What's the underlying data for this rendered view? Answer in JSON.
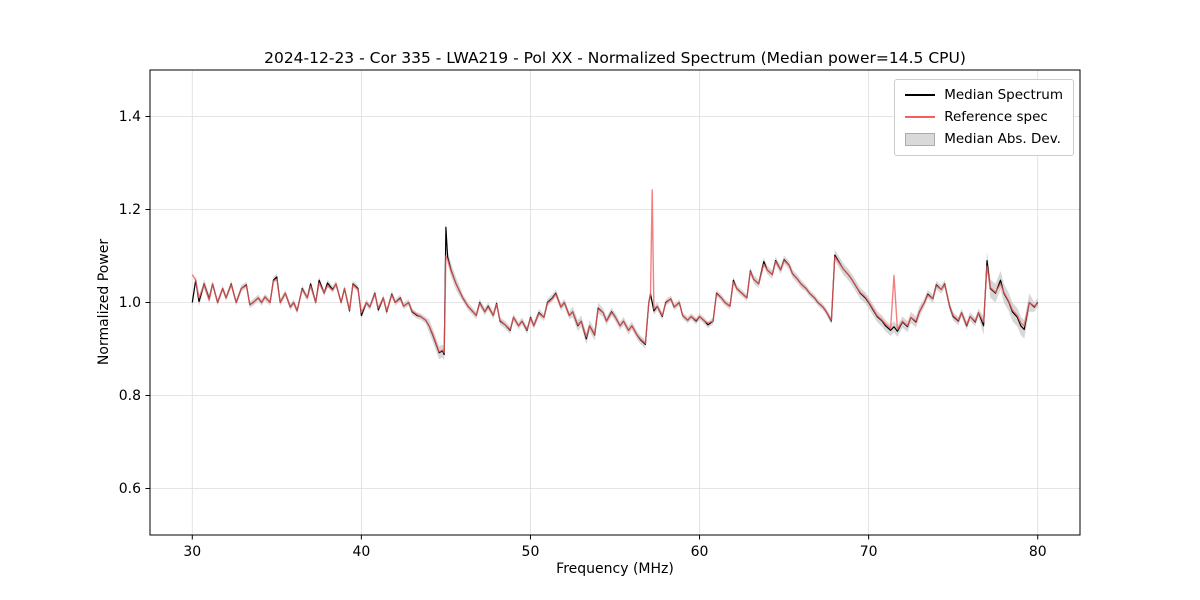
{
  "chart_data": {
    "type": "line",
    "title": "2024-12-23 - Cor 335 - LWA219 - Pol XX - Normalized Spectrum (Median power=14.5 CPU)",
    "xlabel": "Frequency (MHz)",
    "ylabel": "Normalized Power",
    "x_range": [
      27.5,
      82.5
    ],
    "y_range": [
      0.5,
      1.5
    ],
    "x_ticks": [
      30,
      40,
      50,
      60,
      70,
      80
    ],
    "y_ticks": [
      0.6,
      0.8,
      1.0,
      1.2,
      1.4
    ],
    "grid": true,
    "colors": {
      "median": "#000000",
      "reference": "#f25f5f",
      "mad_band": "#bdbdbd",
      "grid": "#dcdcdc",
      "spine": "#000000"
    },
    "legend": {
      "position": "upper right",
      "entries": [
        {
          "label": "Median Spectrum",
          "type": "line",
          "color": "#000000"
        },
        {
          "label": "Reference spec",
          "type": "line",
          "color": "#f25f5f"
        },
        {
          "label": "Median Abs. Dev.",
          "type": "patch",
          "color": "#d9d9d9"
        }
      ]
    },
    "series": {
      "frequency": [
        30.0,
        30.2,
        30.4,
        30.7,
        31.0,
        31.2,
        31.5,
        31.8,
        32.0,
        32.3,
        32.6,
        32.9,
        33.2,
        33.4,
        33.6,
        33.9,
        34.1,
        34.3,
        34.6,
        34.8,
        35.0,
        35.2,
        35.5,
        35.8,
        36.0,
        36.2,
        36.5,
        36.8,
        37.0,
        37.3,
        37.5,
        37.8,
        38.0,
        38.3,
        38.5,
        38.8,
        39.0,
        39.3,
        39.5,
        39.8,
        40.0,
        40.3,
        40.5,
        40.8,
        41.0,
        41.3,
        41.5,
        41.8,
        42.0,
        42.3,
        42.5,
        42.8,
        43.0,
        43.3,
        43.5,
        43.8,
        44.0,
        44.2,
        44.4,
        44.6,
        44.8,
        44.9,
        45.0,
        45.1,
        45.3,
        45.6,
        46.0,
        46.3,
        46.6,
        46.8,
        47.0,
        47.3,
        47.5,
        47.8,
        48.0,
        48.2,
        48.5,
        48.8,
        49.0,
        49.3,
        49.5,
        49.8,
        50.0,
        50.2,
        50.5,
        50.8,
        51.0,
        51.3,
        51.5,
        51.8,
        52.0,
        52.3,
        52.5,
        52.8,
        53.0,
        53.3,
        53.5,
        53.8,
        54.0,
        54.3,
        54.5,
        54.8,
        55.0,
        55.3,
        55.5,
        55.8,
        56.0,
        56.3,
        56.5,
        56.8,
        57.0,
        57.1,
        57.2,
        57.3,
        57.5,
        57.8,
        58.0,
        58.3,
        58.5,
        58.8,
        59.0,
        59.3,
        59.5,
        59.8,
        60.0,
        60.3,
        60.5,
        60.8,
        61.0,
        61.3,
        61.5,
        61.8,
        62.0,
        62.2,
        62.5,
        62.8,
        63.0,
        63.2,
        63.5,
        63.8,
        64.0,
        64.3,
        64.5,
        64.8,
        65.0,
        65.3,
        65.5,
        65.8,
        66.0,
        66.3,
        66.5,
        66.8,
        67.0,
        67.3,
        67.5,
        67.8,
        68.0,
        68.2,
        68.5,
        68.8,
        69.0,
        69.3,
        69.5,
        69.8,
        70.0,
        70.3,
        70.5,
        70.8,
        71.0,
        71.3,
        71.5,
        71.7,
        72.0,
        72.3,
        72.5,
        72.8,
        73.0,
        73.3,
        73.5,
        73.8,
        74.0,
        74.3,
        74.5,
        74.8,
        75.0,
        75.3,
        75.5,
        75.8,
        76.0,
        76.3,
        76.5,
        76.8,
        77.0,
        77.2,
        77.5,
        77.8,
        78.0,
        78.3,
        78.5,
        78.8,
        79.0,
        79.2,
        79.5,
        79.8,
        80.0
      ],
      "median": [
        1.0,
        1.048,
        1.002,
        1.04,
        1.008,
        1.04,
        1.0,
        1.03,
        1.01,
        1.04,
        1.0,
        1.03,
        1.038,
        0.995,
        1.0,
        1.01,
        1.0,
        1.012,
        1.0,
        1.048,
        1.055,
        1.0,
        1.02,
        0.99,
        1.0,
        0.982,
        1.03,
        1.01,
        1.04,
        1.0,
        1.048,
        1.02,
        1.042,
        1.028,
        1.04,
        1.0,
        1.03,
        0.982,
        1.04,
        1.03,
        0.972,
        1.0,
        0.99,
        1.02,
        0.984,
        1.01,
        0.98,
        1.018,
        1.0,
        1.01,
        0.992,
        1.0,
        0.98,
        0.972,
        0.97,
        0.962,
        0.95,
        0.932,
        0.912,
        0.892,
        0.896,
        0.888,
        1.162,
        1.098,
        1.07,
        1.04,
        1.01,
        0.992,
        0.98,
        0.972,
        1.0,
        0.98,
        0.992,
        0.972,
        0.998,
        0.96,
        0.952,
        0.94,
        0.968,
        0.95,
        0.96,
        0.94,
        0.968,
        0.95,
        0.978,
        0.968,
        1.0,
        1.01,
        1.02,
        0.99,
        1.0,
        0.972,
        0.98,
        0.95,
        0.96,
        0.922,
        0.95,
        0.93,
        0.988,
        0.978,
        0.96,
        0.98,
        0.97,
        0.95,
        0.96,
        0.94,
        0.95,
        0.93,
        0.92,
        0.91,
        1.0,
        1.018,
        1.0,
        0.982,
        0.992,
        0.97,
        1.0,
        1.008,
        0.99,
        1.0,
        0.972,
        0.962,
        0.97,
        0.96,
        0.97,
        0.96,
        0.952,
        0.96,
        1.02,
        1.01,
        1.0,
        0.992,
        1.048,
        1.03,
        1.02,
        1.01,
        1.068,
        1.05,
        1.04,
        1.088,
        1.07,
        1.06,
        1.09,
        1.07,
        1.092,
        1.08,
        1.062,
        1.05,
        1.04,
        1.03,
        1.02,
        1.01,
        1.0,
        0.99,
        0.98,
        0.96,
        1.102,
        1.09,
        1.072,
        1.06,
        1.05,
        1.032,
        1.02,
        1.01,
        1.0,
        0.982,
        0.97,
        0.96,
        0.95,
        0.94,
        0.948,
        0.938,
        0.958,
        0.948,
        0.968,
        0.958,
        0.98,
        1.0,
        1.018,
        1.008,
        1.038,
        1.028,
        1.04,
        0.99,
        0.97,
        0.96,
        0.978,
        0.95,
        0.97,
        0.958,
        0.978,
        0.95,
        1.09,
        1.03,
        1.02,
        1.048,
        1.02,
        1.0,
        0.98,
        0.968,
        0.95,
        0.942,
        1.0,
        0.99,
        1.0
      ],
      "reference": [
        1.06,
        1.048,
        1.01,
        1.038,
        1.005,
        1.04,
        1.0,
        1.03,
        1.01,
        1.038,
        1.0,
        1.03,
        1.036,
        0.995,
        1.0,
        1.01,
        1.0,
        1.012,
        1.0,
        1.046,
        1.05,
        1.0,
        1.02,
        0.99,
        1.0,
        0.982,
        1.028,
        1.01,
        1.035,
        1.0,
        1.042,
        1.02,
        1.036,
        1.026,
        1.04,
        1.0,
        1.03,
        0.984,
        1.038,
        1.028,
        0.978,
        1.0,
        0.99,
        1.018,
        0.988,
        1.01,
        0.982,
        1.016,
        1.0,
        1.008,
        0.992,
        1.0,
        0.982,
        0.974,
        0.97,
        0.962,
        0.95,
        0.934,
        0.914,
        0.894,
        0.898,
        0.892,
        1.1,
        1.092,
        1.068,
        1.04,
        1.01,
        0.992,
        0.98,
        0.972,
        0.998,
        0.98,
        0.99,
        0.972,
        0.996,
        0.962,
        0.952,
        0.942,
        0.968,
        0.95,
        0.96,
        0.942,
        0.966,
        0.95,
        0.976,
        0.968,
        0.998,
        1.008,
        1.018,
        0.99,
        1.0,
        0.972,
        0.98,
        0.952,
        0.96,
        0.926,
        0.95,
        0.932,
        0.986,
        0.978,
        0.96,
        0.978,
        0.97,
        0.95,
        0.96,
        0.94,
        0.95,
        0.93,
        0.922,
        0.912,
        1.0,
        1.016,
        1.242,
        0.986,
        0.992,
        0.972,
        0.998,
        1.008,
        0.99,
        1.0,
        0.972,
        0.962,
        0.97,
        0.962,
        0.97,
        0.96,
        0.956,
        0.96,
        1.018,
        1.01,
        1.0,
        0.992,
        1.044,
        1.03,
        1.02,
        1.01,
        1.066,
        1.05,
        1.04,
        1.082,
        1.07,
        1.06,
        1.088,
        1.07,
        1.09,
        1.08,
        1.062,
        1.05,
        1.04,
        1.03,
        1.02,
        1.01,
        1.0,
        0.99,
        0.98,
        0.962,
        1.098,
        1.088,
        1.072,
        1.06,
        1.05,
        1.032,
        1.022,
        1.012,
        1.002,
        0.984,
        0.972,
        0.962,
        0.954,
        0.944,
        1.058,
        0.942,
        0.96,
        0.95,
        0.968,
        0.96,
        0.98,
        1.0,
        1.016,
        1.008,
        1.036,
        1.028,
        1.038,
        0.992,
        0.972,
        0.962,
        0.978,
        0.952,
        0.97,
        0.96,
        0.978,
        0.958,
        1.078,
        1.032,
        1.022,
        1.04,
        1.022,
        1.002,
        0.984,
        0.972,
        0.956,
        0.95,
        1.0,
        0.992,
        0.998
      ]
    },
    "mad_segments": [
      {
        "from": 27.5,
        "to": 31.0,
        "value": 0.01
      },
      {
        "from": 31.0,
        "to": 43.8,
        "value": 0.007
      },
      {
        "from": 43.8,
        "to": 45.6,
        "value": 0.014
      },
      {
        "from": 45.6,
        "to": 52.4,
        "value": 0.008
      },
      {
        "from": 52.4,
        "to": 54.2,
        "value": 0.012
      },
      {
        "from": 54.2,
        "to": 57.5,
        "value": 0.009
      },
      {
        "from": 57.5,
        "to": 63.0,
        "value": 0.007
      },
      {
        "from": 63.0,
        "to": 66.0,
        "value": 0.009
      },
      {
        "from": 66.0,
        "to": 67.9,
        "value": 0.007
      },
      {
        "from": 67.9,
        "to": 73.0,
        "value": 0.012
      },
      {
        "from": 73.0,
        "to": 76.7,
        "value": 0.009
      },
      {
        "from": 76.7,
        "to": 79.6,
        "value": 0.02
      },
      {
        "from": 79.6,
        "to": 82.5,
        "value": 0.01
      }
    ]
  }
}
